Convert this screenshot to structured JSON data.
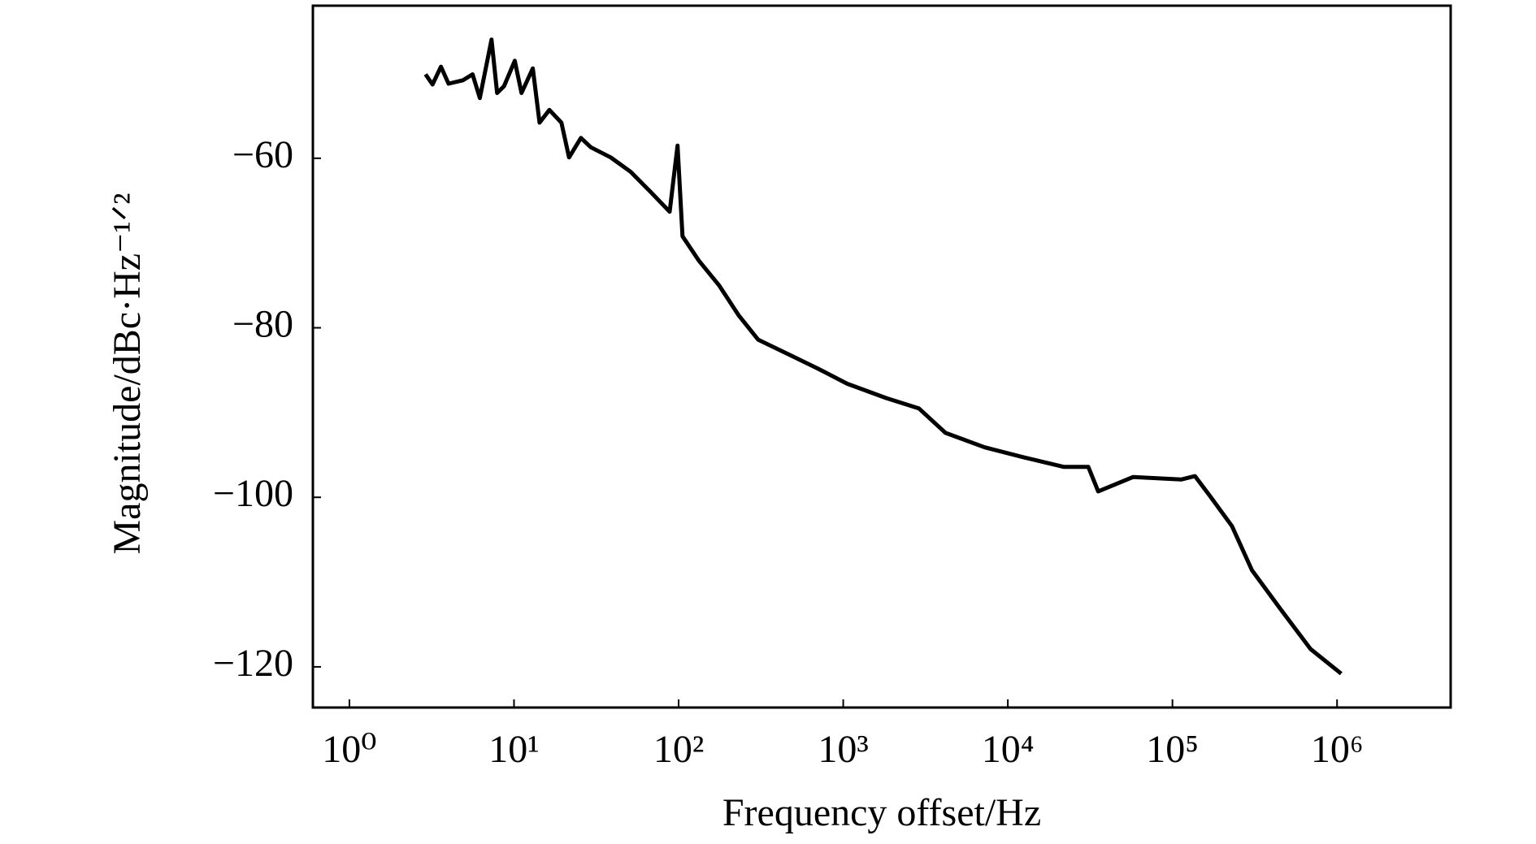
{
  "chart_data": {
    "type": "line",
    "xlabel": "Frequency offset/Hz",
    "ylabel": "Magnitude/dBc·Hz⁻¹ᐟ²",
    "xscale": "log",
    "grid": false,
    "xlim": [
      0.6,
      4900000
    ],
    "ylim": [
      -124.8,
      -42
    ],
    "xticks": [
      {
        "value": 1,
        "label": "10⁰"
      },
      {
        "value": 10,
        "label": "10¹"
      },
      {
        "value": 100,
        "label": "10²"
      },
      {
        "value": 1000,
        "label": "10³"
      },
      {
        "value": 10000,
        "label": "10⁴"
      },
      {
        "value": 100000,
        "label": "10⁵"
      },
      {
        "value": 1000000,
        "label": "10⁶"
      }
    ],
    "yticks": [
      {
        "value": -60,
        "label": "−60"
      },
      {
        "value": -80,
        "label": "−80"
      },
      {
        "value": -100,
        "label": "−100"
      },
      {
        "value": -120,
        "label": "−120"
      }
    ],
    "x": [
      2.9,
      3.2,
      3.6,
      4.0,
      4.9,
      5.6,
      6.2,
      7.3,
      7.9,
      8.7,
      10.1,
      11.1,
      13.0,
      14.3,
      16.4,
      19.4,
      21.6,
      25.5,
      29.3,
      38.7,
      51.1,
      67,
      88.2,
      98.5,
      105.6,
      133,
      176,
      231,
      304,
      462,
      699,
      1057,
      1830,
      2880,
      4180,
      7240,
      12600,
      21800,
      30800,
      35400,
      57700,
      113000,
      137000,
      170000,
      230000,
      304000,
      458000,
      690000,
      1060000
    ],
    "series": [
      {
        "color": "#000000",
        "values": [
          -50.1,
          -51.3,
          -49.2,
          -51.2,
          -50.8,
          -50.1,
          -52.9,
          -46.0,
          -52.3,
          -51.5,
          -48.5,
          -52.3,
          -49.4,
          -55.8,
          -54.3,
          -55.8,
          -59.9,
          -57.6,
          -58.7,
          -59.9,
          -61.6,
          -63.9,
          -66.3,
          -58.5,
          -69.2,
          -72.1,
          -75.0,
          -78.5,
          -81.4,
          -83.1,
          -84.8,
          -86.6,
          -88.3,
          -89.5,
          -92.4,
          -94.1,
          -95.3,
          -96.4,
          -96.4,
          -99.3,
          -97.6,
          -97.9,
          -97.5,
          -99.9,
          -103.4,
          -108.6,
          -113.3,
          -117.9,
          -120.8
        ]
      }
    ]
  }
}
